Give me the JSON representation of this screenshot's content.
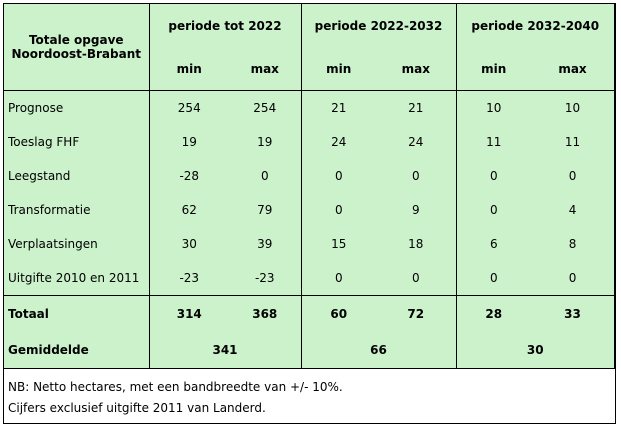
{
  "table": {
    "title": "Totale opgave Noordoost-Brabant",
    "periods": [
      "periode tot 2022",
      "periode 2022-2032",
      "periode 2032-2040"
    ],
    "subheaders": [
      "min",
      "max",
      "min",
      "max",
      "min",
      "max"
    ],
    "rows": [
      {
        "label": "Prognose",
        "values": [
          254,
          254,
          21,
          21,
          10,
          10
        ]
      },
      {
        "label": "Toeslag FHF",
        "values": [
          19,
          19,
          24,
          24,
          11,
          11
        ]
      },
      {
        "label": "Leegstand",
        "values": [
          -28,
          0,
          0,
          0,
          0,
          0
        ]
      },
      {
        "label": "Transformatie",
        "values": [
          62,
          79,
          0,
          9,
          0,
          4
        ]
      },
      {
        "label": "Verplaatsingen",
        "values": [
          30,
          39,
          15,
          18,
          6,
          8
        ]
      },
      {
        "label": "Uitgifte 2010 en 2011",
        "values": [
          -23,
          -23,
          0,
          0,
          0,
          0
        ]
      }
    ],
    "total": {
      "label": "Totaal",
      "values": [
        314,
        368,
        60,
        72,
        28,
        33
      ]
    },
    "average": {
      "label": "Gemiddelde",
      "values": [
        341,
        66,
        30
      ]
    },
    "notes": [
      "NB: Netto hectares, met een bandbreedte van +/- 10%.",
      "Cijfers exclusief uitgifte 2011 van Landerd."
    ]
  }
}
